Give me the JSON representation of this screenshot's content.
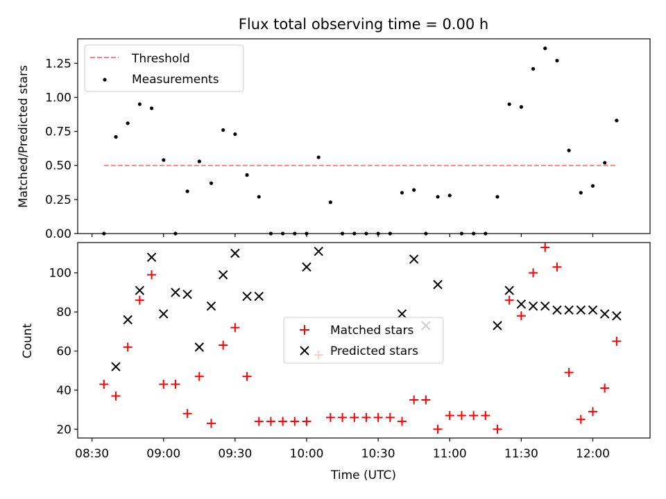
{
  "chart_data": [
    {
      "type": "scatter",
      "title": "Flux total observing time = 0.00 h",
      "xlabel": "",
      "ylabel": "Matched/Predicted stars",
      "ylim": [
        0,
        1.43
      ],
      "yticks": [
        "0.00",
        "0.25",
        "0.50",
        "0.75",
        "1.00",
        "1.25"
      ],
      "x_unit": "time (UTC, HH:MM)",
      "x": [
        "08:35",
        "08:40",
        "08:45",
        "08:50",
        "08:55",
        "09:00",
        "09:05",
        "09:10",
        "09:15",
        "09:20",
        "09:25",
        "09:30",
        "09:35",
        "09:40",
        "09:45",
        "09:50",
        "09:55",
        "10:00",
        "10:05",
        "10:10",
        "10:15",
        "10:20",
        "10:25",
        "10:30",
        "10:35",
        "10:40",
        "10:45",
        "10:50",
        "10:55",
        "11:00",
        "11:05",
        "11:10",
        "11:15",
        "11:20",
        "11:25",
        "11:30",
        "11:35",
        "11:40",
        "11:45",
        "11:50",
        "11:55",
        "12:00",
        "12:05",
        "12:10"
      ],
      "grid": false,
      "legend": "top-left",
      "series": [
        {
          "name": "Threshold",
          "style": "dashed-line",
          "color": "#ff7f7f",
          "x_range": [
            "08:35",
            "12:10"
          ],
          "value": 0.5
        },
        {
          "name": "Measurements",
          "style": "dot",
          "color": "#000000",
          "values": [
            0.0,
            0.71,
            0.81,
            0.95,
            0.92,
            0.54,
            0.0,
            0.31,
            0.53,
            0.37,
            0.76,
            0.73,
            0.43,
            0.27,
            0.0,
            0.0,
            0.0,
            0.0,
            0.56,
            0.23,
            0.0,
            0.0,
            0.0,
            0.0,
            0.0,
            0.3,
            0.32,
            0.0,
            0.27,
            0.28,
            0.0,
            0.0,
            0.0,
            0.27,
            0.95,
            0.93,
            1.21,
            1.36,
            1.27,
            0.61,
            0.3,
            0.35,
            0.52,
            0.83
          ]
        }
      ]
    },
    {
      "type": "scatter",
      "title": "",
      "xlabel": "Time (UTC)",
      "ylabel": "Count",
      "ylim": [
        15.5,
        115.5
      ],
      "yticks": [
        "20",
        "40",
        "60",
        "80",
        "100"
      ],
      "xlim": [
        "08:24",
        "12:24"
      ],
      "xticks": [
        "08:30",
        "09:00",
        "09:30",
        "10:00",
        "10:30",
        "11:00",
        "11:30",
        "12:00"
      ],
      "grid": false,
      "legend": "center",
      "series": [
        {
          "name": "Matched stars",
          "marker": "+",
          "color": "#ff0000",
          "x": [
            "08:35",
            "08:40",
            "08:45",
            "08:50",
            "08:55",
            "09:00",
            "09:05",
            "09:10",
            "09:15",
            "09:20",
            "09:25",
            "09:30",
            "09:35",
            "09:40",
            "09:45",
            "09:50",
            "09:55",
            "10:00",
            "10:05",
            "10:10",
            "10:15",
            "10:20",
            "10:25",
            "10:30",
            "10:35",
            "10:40",
            "10:45",
            "10:50",
            "10:55",
            "11:00",
            "11:05",
            "11:10",
            "11:15",
            "11:20",
            "11:25",
            "11:30",
            "11:35",
            "11:40",
            "11:45",
            "11:50",
            "11:55",
            "12:00",
            "12:05",
            "12:10"
          ],
          "values": [
            43,
            37,
            62,
            86,
            99,
            43,
            43,
            28,
            47,
            23,
            63,
            72,
            47,
            24,
            24,
            24,
            24,
            24,
            58,
            26,
            26,
            26,
            26,
            26,
            26,
            24,
            35,
            35,
            20,
            27,
            27,
            27,
            27,
            20,
            86,
            78,
            100,
            113,
            103,
            49,
            25,
            29,
            41,
            65
          ]
        },
        {
          "name": "Predicted stars",
          "marker": "x",
          "color": "#000000",
          "x": [
            "08:40",
            "08:45",
            "08:50",
            "08:55",
            "09:00",
            "09:05",
            "09:10",
            "09:15",
            "09:20",
            "09:25",
            "09:30",
            "09:35",
            "09:40",
            "10:00",
            "10:05",
            "10:40",
            "10:45",
            "10:50",
            "10:55",
            "11:20",
            "11:25",
            "11:30",
            "11:35",
            "11:40",
            "11:45",
            "11:50",
            "11:55",
            "12:00",
            "12:05",
            "12:10"
          ],
          "values": [
            52,
            76,
            91,
            108,
            79,
            90,
            89,
            62,
            83,
            99,
            110,
            88,
            88,
            103,
            111,
            79,
            107,
            73,
            94,
            73,
            91,
            84,
            83,
            83,
            81,
            81,
            81,
            81,
            79,
            78
          ]
        }
      ]
    }
  ]
}
